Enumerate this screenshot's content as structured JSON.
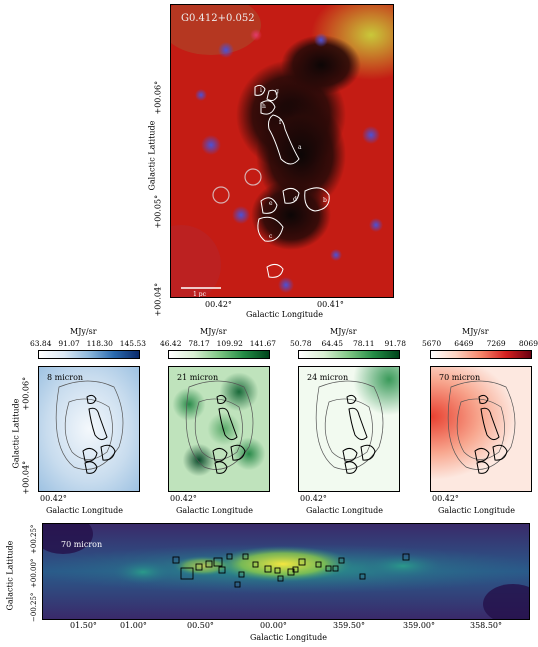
{
  "main_panel": {
    "title": "G0.412+0.052",
    "scale_bar": "1 pc",
    "xlabel": "Galactic Longitude",
    "ylabel": "Galactic Latitude",
    "xticks": [
      "00.42°",
      "00.41°"
    ],
    "yticks": [
      "+00.06°",
      "+00.05°",
      "+00.04°"
    ],
    "sources": [
      "a",
      "b",
      "c",
      "d",
      "e",
      "f",
      "g",
      "h",
      "i"
    ]
  },
  "small_panels": [
    {
      "label": "8 micron",
      "unit": "MJy/sr",
      "ticks": [
        "63.84",
        "91.07",
        "118.30",
        "145.53"
      ],
      "cmap": "blues"
    },
    {
      "label": "21 micron",
      "unit": "MJy/sr",
      "ticks": [
        "46.42",
        "78.17",
        "109.92",
        "141.67"
      ],
      "cmap": "greens"
    },
    {
      "label": "24 micron",
      "unit": "MJy/sr",
      "ticks": [
        "50.78",
        "64.45",
        "78.11",
        "91.78"
      ],
      "cmap": "greens"
    },
    {
      "label": "70 micron",
      "unit": "MJy/sr",
      "ticks": [
        "5670",
        "6469",
        "7269",
        "8069"
      ],
      "cmap": "reds"
    }
  ],
  "small_common": {
    "xtick": "00.42°",
    "xlabel": "Galactic Longitude",
    "ylabel": "Galactic Latitude",
    "yticks": [
      "+00.06°",
      "+00.04°"
    ]
  },
  "wide_panel": {
    "label": "70 micron",
    "xlabel": "Galactic Longitude",
    "ylabel": "Galactic Latitude",
    "xticks": [
      "01.50°",
      "01.00°",
      "00.50°",
      "00.00°",
      "359.50°",
      "359.00°",
      "358.50°"
    ],
    "yticks": [
      "+00.25°",
      "+00.00°",
      "−00.25°"
    ]
  }
}
